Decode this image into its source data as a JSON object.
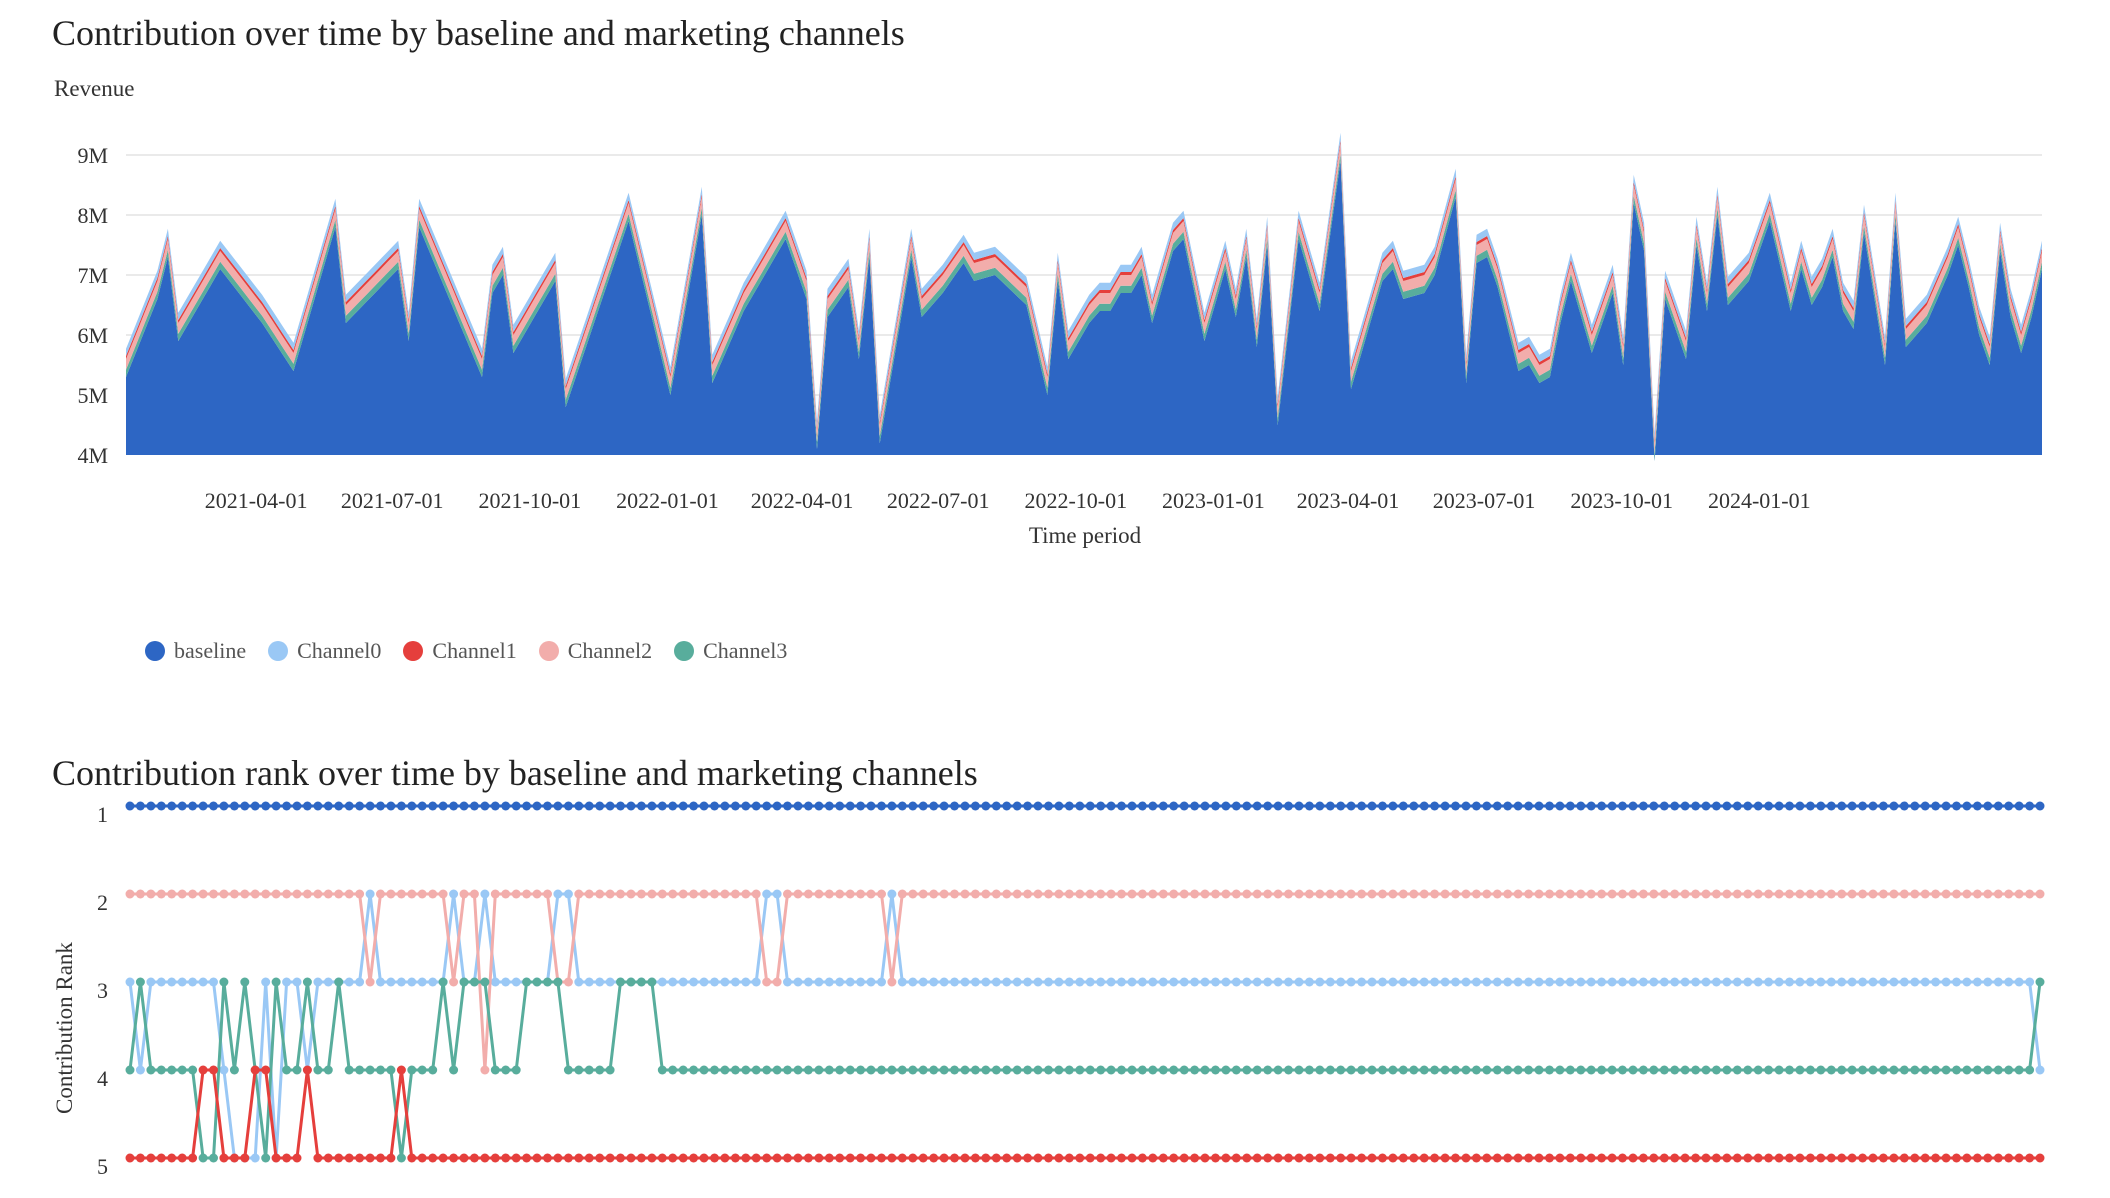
{
  "charts": {
    "area_title": "Contribution over time by baseline and marketing channels",
    "area_ylabel": "Revenue",
    "area_xlabel": "Time period",
    "rank_title": "Contribution rank over time by baseline and marketing channels",
    "rank_ylabel": "Contribution Rank"
  },
  "legend": [
    {
      "name": "baseline",
      "color": "#2d66c4"
    },
    {
      "name": "Channel0",
      "color": "#9ac8f5"
    },
    {
      "name": "Channel1",
      "color": "#e53f3c"
    },
    {
      "name": "Channel2",
      "color": "#f2adab"
    },
    {
      "name": "Channel3",
      "color": "#58ad9c"
    }
  ],
  "chart_data": [
    {
      "type": "area",
      "stacked": true,
      "title": "Contribution over time by baseline and marketing channels",
      "xlabel": "Time period",
      "ylabel": "Revenue",
      "x_tick_labels": [
        "2021-04-01",
        "2021-07-01",
        "2021-10-01",
        "2022-01-01",
        "2022-04-01",
        "2022-07-01",
        "2022-10-01",
        "2023-01-01",
        "2023-04-01",
        "2023-07-01",
        "2023-10-01",
        "2024-01-01"
      ],
      "y_tick_labels": [
        "4M",
        "5M",
        "6M",
        "7M",
        "8M",
        "9M"
      ],
      "ylim": [
        4000000,
        9500000
      ],
      "x_start": "2021-01-04",
      "x_step_days": 7,
      "grid": true,
      "legend_position": "bottom-left",
      "baseline_anchors": [
        [
          0,
          5.3
        ],
        [
          3,
          6.6
        ],
        [
          4,
          7.3
        ],
        [
          5,
          5.9
        ],
        [
          9,
          7.1
        ],
        [
          13,
          6.2
        ],
        [
          16,
          5.4
        ],
        [
          20,
          7.8
        ],
        [
          21,
          6.2
        ],
        [
          26,
          7.1
        ],
        [
          27,
          5.9
        ],
        [
          28,
          7.8
        ],
        [
          34,
          5.3
        ],
        [
          35,
          6.7
        ],
        [
          36,
          7.0
        ],
        [
          37,
          5.7
        ],
        [
          41,
          6.9
        ],
        [
          42,
          4.8
        ],
        [
          48,
          7.9
        ],
        [
          52,
          5.0
        ],
        [
          55,
          8.0
        ],
        [
          56,
          5.2
        ],
        [
          59,
          6.4
        ],
        [
          63,
          7.6
        ],
        [
          65,
          6.6
        ],
        [
          66,
          4.1
        ],
        [
          67,
          6.3
        ],
        [
          69,
          6.8
        ],
        [
          70,
          5.6
        ],
        [
          71,
          7.3
        ],
        [
          72,
          4.2
        ],
        [
          75,
          7.3
        ],
        [
          76,
          6.3
        ],
        [
          78,
          6.7
        ],
        [
          80,
          7.2
        ],
        [
          81,
          6.9
        ],
        [
          83,
          7.0
        ],
        [
          86,
          6.5
        ],
        [
          88,
          5.0
        ],
        [
          89,
          6.9
        ],
        [
          90,
          5.6
        ],
        [
          92,
          6.2
        ],
        [
          93,
          6.4
        ],
        [
          94,
          6.4
        ],
        [
          95,
          6.7
        ],
        [
          96,
          6.7
        ],
        [
          97,
          7.0
        ],
        [
          98,
          6.2
        ],
        [
          100,
          7.4
        ],
        [
          101,
          7.6
        ],
        [
          103,
          5.9
        ],
        [
          105,
          7.1
        ],
        [
          106,
          6.3
        ],
        [
          107,
          7.3
        ],
        [
          108,
          5.8
        ],
        [
          109,
          7.5
        ],
        [
          110,
          4.5
        ],
        [
          112,
          7.6
        ],
        [
          114,
          6.4
        ],
        [
          116,
          8.9
        ],
        [
          117,
          5.1
        ],
        [
          120,
          6.9
        ],
        [
          121,
          7.1
        ],
        [
          122,
          6.6
        ],
        [
          124,
          6.7
        ],
        [
          125,
          7.0
        ],
        [
          127,
          8.3
        ],
        [
          128,
          5.2
        ],
        [
          129,
          7.2
        ],
        [
          130,
          7.3
        ],
        [
          131,
          6.8
        ],
        [
          133,
          5.4
        ],
        [
          134,
          5.5
        ],
        [
          135,
          5.2
        ],
        [
          136,
          5.3
        ],
        [
          137,
          6.2
        ],
        [
          138,
          6.9
        ],
        [
          140,
          5.7
        ],
        [
          142,
          6.7
        ],
        [
          143,
          5.5
        ],
        [
          144,
          8.2
        ],
        [
          145,
          7.4
        ],
        [
          146,
          3.9
        ],
        [
          147,
          6.6
        ],
        [
          149,
          5.6
        ],
        [
          150,
          7.5
        ],
        [
          151,
          6.4
        ],
        [
          152,
          8.0
        ],
        [
          153,
          6.5
        ],
        [
          155,
          6.9
        ],
        [
          157,
          7.9
        ],
        [
          159,
          6.4
        ],
        [
          160,
          7.1
        ],
        [
          161,
          6.5
        ],
        [
          162,
          6.8
        ],
        [
          163,
          7.3
        ],
        [
          164,
          6.4
        ],
        [
          165,
          6.1
        ],
        [
          166,
          7.7
        ],
        [
          168,
          5.5
        ],
        [
          169,
          7.9
        ],
        [
          170,
          5.8
        ],
        [
          172,
          6.2
        ],
        [
          174,
          7.0
        ],
        [
          175,
          7.5
        ],
        [
          176,
          6.8
        ],
        [
          177,
          6.0
        ],
        [
          178,
          5.5
        ],
        [
          179,
          7.4
        ],
        [
          180,
          6.3
        ],
        [
          181,
          5.7
        ],
        [
          182,
          6.3
        ],
        [
          183,
          7.1
        ]
      ],
      "channel_widths": [
        0.12,
        0.05,
        0.18,
        0.12
      ],
      "series": [
        {
          "name": "baseline"
        },
        {
          "name": "Channel0"
        },
        {
          "name": "Channel1"
        },
        {
          "name": "Channel2"
        },
        {
          "name": "Channel3"
        }
      ]
    },
    {
      "type": "line",
      "title": "Contribution rank over time by baseline and marketing channels",
      "ylabel": "Contribution Rank",
      "y_tick_labels": [
        "1",
        "2",
        "3",
        "4",
        "5"
      ],
      "ylim": [
        1,
        5
      ],
      "n_points": 184,
      "series": [
        {
          "name": "baseline",
          "values": [
            1
          ]
        },
        {
          "name": "Channel2",
          "values": [
            2,
            2,
            2,
            2,
            2,
            2,
            2,
            2,
            2,
            2,
            2,
            2,
            2,
            2,
            2,
            2,
            2,
            2,
            2,
            2,
            2,
            2,
            2,
            3,
            2,
            2,
            2,
            2,
            2,
            2,
            2,
            3,
            2,
            2,
            4,
            2,
            2,
            2,
            2,
            2,
            2,
            3,
            3,
            2,
            2,
            2,
            2,
            2,
            2,
            2,
            2,
            2,
            2,
            2,
            2,
            2,
            2,
            2,
            2,
            2,
            2,
            3,
            3,
            2,
            2,
            2,
            2,
            2,
            2,
            2,
            2,
            2,
            2,
            3,
            2,
            2,
            2,
            2,
            2,
            2,
            2,
            2,
            2,
            2,
            2,
            2,
            2,
            2,
            2,
            2,
            2,
            2,
            2,
            2,
            2,
            2,
            2,
            2,
            2,
            2,
            2,
            2,
            2,
            2,
            2,
            2,
            2,
            2,
            2,
            2,
            2,
            2,
            2,
            2,
            2,
            2,
            2,
            2,
            2,
            2,
            2,
            2,
            2,
            2,
            2,
            2,
            2,
            2,
            2,
            2,
            2,
            2,
            2,
            2,
            2,
            2,
            2,
            2,
            2,
            2,
            2,
            2,
            2,
            2,
            2,
            2,
            2,
            2,
            2,
            2,
            2,
            2,
            2,
            2,
            2,
            2,
            2,
            2,
            2,
            2,
            2,
            2,
            2,
            2,
            2,
            2,
            2,
            2,
            2,
            2,
            2,
            2,
            2,
            2,
            2,
            2,
            2,
            2,
            2,
            2,
            2,
            2,
            2,
            2
          ]
        },
        {
          "name": "Channel0",
          "values": [
            3,
            4,
            3,
            3,
            3,
            3,
            3,
            3,
            3,
            4,
            5,
            5,
            5,
            3,
            5,
            3,
            3,
            4,
            3,
            3,
            3,
            3,
            3,
            2,
            3,
            3,
            3,
            3,
            3,
            3,
            3,
            2,
            3,
            3,
            2,
            3,
            3,
            3,
            3,
            3,
            3,
            2,
            2,
            3,
            3,
            3,
            3,
            3,
            3,
            3,
            3,
            3,
            3,
            3,
            3,
            3,
            3,
            3,
            3,
            3,
            3,
            2,
            2,
            3,
            3,
            3,
            3,
            3,
            3,
            3,
            3,
            3,
            3,
            2,
            3,
            3,
            3,
            3,
            3,
            3,
            3,
            3,
            3,
            3,
            3,
            3,
            3,
            3,
            3,
            3,
            3,
            3,
            3,
            3,
            3,
            3,
            3,
            3,
            3,
            3,
            3,
            3,
            3,
            3,
            3,
            3,
            3,
            3,
            3,
            3,
            3,
            3,
            3,
            3,
            3,
            3,
            3,
            3,
            3,
            3,
            3,
            3,
            3,
            3,
            3,
            3,
            3,
            3,
            3,
            3,
            3,
            3,
            3,
            3,
            3,
            3,
            3,
            3,
            3,
            3,
            3,
            3,
            3,
            3,
            3,
            3,
            3,
            3,
            3,
            3,
            3,
            3,
            3,
            3,
            3,
            3,
            3,
            3,
            3,
            3,
            3,
            3,
            3,
            3,
            3,
            3,
            3,
            3,
            3,
            3,
            3,
            3,
            3,
            3,
            3,
            3,
            3,
            3,
            3,
            3,
            3,
            3,
            3,
            4
          ]
        },
        {
          "name": "Channel3",
          "values": [
            4,
            3,
            4,
            4,
            4,
            4,
            4,
            5,
            5,
            3,
            4,
            3,
            4,
            5,
            3,
            4,
            4,
            3,
            4,
            4,
            3,
            4,
            4,
            4,
            4,
            4,
            5,
            4,
            4,
            4,
            3,
            4,
            3,
            3,
            3,
            4,
            4,
            4,
            3,
            3,
            3,
            3,
            4,
            4,
            4,
            4,
            4,
            3,
            3,
            3,
            3,
            4,
            4,
            4,
            4,
            4,
            4,
            4,
            4,
            4,
            4,
            4,
            4,
            4,
            4,
            4,
            4,
            4,
            4,
            4,
            4,
            4,
            4,
            4,
            4,
            4,
            4,
            4,
            4,
            4,
            4,
            4,
            4,
            4,
            4,
            4,
            4,
            4,
            4,
            4,
            4,
            4,
            4,
            4,
            4,
            4,
            4,
            4,
            4,
            4,
            4,
            4,
            4,
            4,
            4,
            4,
            4,
            4,
            4,
            4,
            4,
            4,
            4,
            4,
            4,
            4,
            4,
            4,
            4,
            4,
            4,
            4,
            4,
            4,
            4,
            4,
            4,
            4,
            4,
            4,
            4,
            4,
            4,
            4,
            4,
            4,
            4,
            4,
            4,
            4,
            4,
            4,
            4,
            4,
            4,
            4,
            4,
            4,
            4,
            4,
            4,
            4,
            4,
            4,
            4,
            4,
            4,
            4,
            4,
            4,
            4,
            4,
            4,
            4,
            4,
            4,
            4,
            4,
            4,
            4,
            4,
            4,
            4,
            4,
            4,
            4,
            4,
            4,
            4,
            4,
            4,
            4,
            4,
            3
          ]
        },
        {
          "name": "Channel1",
          "values": [
            5,
            5,
            5,
            5,
            5,
            5,
            5,
            4,
            4,
            5,
            5,
            5,
            4,
            4,
            5,
            5,
            5,
            4,
            5,
            5,
            5,
            5,
            5,
            5,
            5,
            5,
            4,
            5,
            5,
            5,
            5,
            5,
            5,
            5,
            5,
            5,
            5,
            5,
            5,
            5,
            5,
            5,
            5,
            5,
            5,
            5,
            5,
            5,
            5,
            5,
            5,
            5,
            5,
            5,
            5,
            5,
            5,
            5,
            5,
            5,
            5,
            5,
            5,
            5,
            5,
            5,
            5,
            5,
            5,
            5,
            5,
            5,
            5,
            5,
            5,
            5,
            5,
            5,
            5,
            5,
            5,
            5,
            5,
            5,
            5,
            5,
            5,
            5,
            5,
            5,
            5,
            5,
            5,
            5,
            5,
            5,
            5,
            5,
            5,
            5,
            5,
            5,
            5,
            5,
            5,
            5,
            5,
            5,
            5,
            5,
            5,
            5,
            5,
            5,
            5,
            5,
            5,
            5,
            5,
            5,
            5,
            5,
            5,
            5,
            5,
            5,
            5,
            5,
            5,
            5,
            5,
            5,
            5,
            5,
            5,
            5,
            5,
            5,
            5,
            5,
            5,
            5,
            5,
            5,
            5,
            5,
            5,
            5,
            5,
            5,
            5,
            5,
            5,
            5,
            5,
            5,
            5,
            5,
            5,
            5,
            5,
            5,
            5,
            5,
            5,
            5,
            5,
            5,
            5,
            5,
            5,
            5,
            5,
            5,
            5,
            5,
            5,
            5,
            5,
            5,
            5,
            5,
            5,
            5
          ]
        }
      ]
    }
  ]
}
